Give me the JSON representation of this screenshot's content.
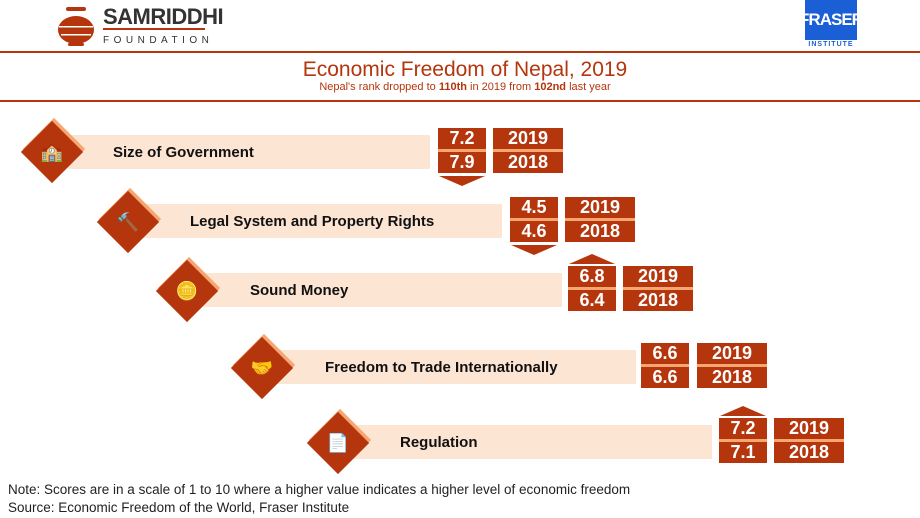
{
  "header": {
    "org_name": "SAMRIDDHI",
    "org_sub": "FOUNDATION",
    "partner_name": "FRASER",
    "partner_sub": "INSTITUTE"
  },
  "title": "Economic Freedom of Nepal, 2019",
  "subtitle": {
    "p1": "Nepal's rank dropped to ",
    "rank_now": "110th",
    "p2": " in 2019 from ",
    "rank_prev": "102nd",
    "p3": " last year"
  },
  "colors": {
    "accent": "#b5350c",
    "light": "#fde5d4",
    "secondary": "#f5a671",
    "fraser": "#1a5fd6"
  },
  "areas": [
    {
      "label": "Size of Government",
      "icon": "government-building-icon",
      "score_2019": "7.2",
      "score_2018": "7.9",
      "year_a": "2019",
      "year_b": "2018",
      "trend": "down"
    },
    {
      "label": "Legal System and Property Rights",
      "icon": "gavel-icon",
      "score_2019": "4.5",
      "score_2018": "4.6",
      "year_a": "2019",
      "year_b": "2018",
      "trend": "down"
    },
    {
      "label": "Sound Money",
      "icon": "coins-icon",
      "score_2019": "6.8",
      "score_2018": "6.4",
      "year_a": "2019",
      "year_b": "2018",
      "trend": "up"
    },
    {
      "label": "Freedom to Trade Internationally",
      "icon": "handshake-icon",
      "score_2019": "6.6",
      "score_2018": "6.6",
      "year_a": "2019",
      "year_b": "2018",
      "trend": "none"
    },
    {
      "label": "Regulation",
      "icon": "document-gear-icon",
      "score_2019": "7.2",
      "score_2018": "7.1",
      "year_a": "2019",
      "year_b": "2018",
      "trend": "up"
    }
  ],
  "footer": {
    "note": "Note: Scores are in a scale of 1 to 10 where a higher value indicates a higher level of economic freedom",
    "source": "Source: Economic Freedom of the World, Fraser Institute"
  }
}
